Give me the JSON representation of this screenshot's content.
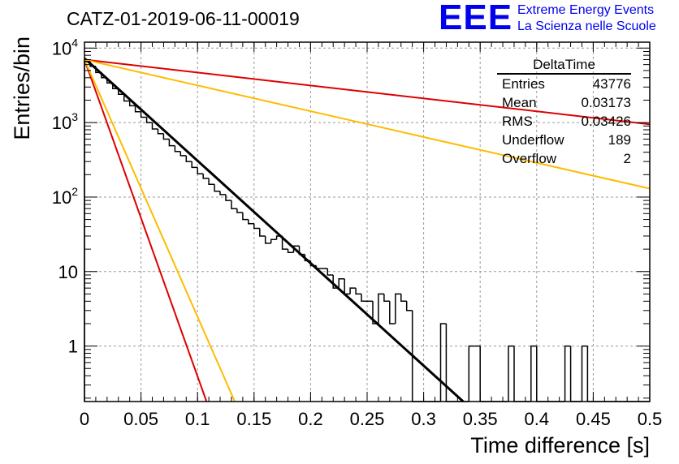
{
  "title": "CATZ-01-2019-06-11-00019",
  "logo": {
    "mark": "EEE",
    "line1": "Extreme Energy Events",
    "line2": "La Scienza nelle Scuole",
    "color": "#0000ee"
  },
  "stats": {
    "title": "DeltaTime",
    "rows": [
      {
        "label": "Entries",
        "value": "43776"
      },
      {
        "label": "Mean",
        "value": "0.03173"
      },
      {
        "label": "RMS",
        "value": "0.03426"
      },
      {
        "label": "Underflow",
        "value": "189"
      },
      {
        "label": "Overflow",
        "value": "2"
      }
    ]
  },
  "chart_data": {
    "type": "histogram",
    "title": "CATZ-01-2019-06-11-00019",
    "xlabel": "Time difference [s]",
    "ylabel": "Entries/bin",
    "xlim": [
      0,
      0.5
    ],
    "ylim": [
      0.18,
      12000
    ],
    "yscale": "log",
    "grid": true,
    "x_ticks": [
      "0",
      "0.05",
      "0.1",
      "0.15",
      "0.2",
      "0.25",
      "0.3",
      "0.35",
      "0.4",
      "0.45",
      "0.5"
    ],
    "x_tick_values": [
      0,
      0.05,
      0.1,
      0.15,
      0.2,
      0.25,
      0.3,
      0.35,
      0.4,
      0.45,
      0.5
    ],
    "y_ticks": [
      {
        "value": 1,
        "base": "1",
        "exp": ""
      },
      {
        "value": 10,
        "base": "10",
        "exp": ""
      },
      {
        "value": 100,
        "base": "10",
        "exp": "2"
      },
      {
        "value": 1000,
        "base": "10",
        "exp": "3"
      },
      {
        "value": 10000,
        "base": "10",
        "exp": "4"
      }
    ],
    "bin_width": 0.005,
    "bin_start": 0,
    "histogram_values": [
      6600,
      5700,
      4700,
      4000,
      3400,
      2850,
      2400,
      1950,
      1680,
      1400,
      1180,
      1000,
      820,
      710,
      600,
      490,
      410,
      360,
      300,
      250,
      205,
      178,
      148,
      120,
      108,
      90,
      70,
      62,
      50,
      44,
      38,
      30,
      24,
      27,
      30,
      20,
      18,
      22,
      17,
      14,
      12,
      11,
      11,
      9,
      6,
      8,
      5,
      6,
      5,
      4,
      4,
      2,
      5,
      4,
      2,
      5,
      4,
      3,
      0,
      0,
      0,
      0,
      0,
      2,
      0,
      0,
      0,
      0,
      1,
      1,
      0,
      0,
      0,
      0,
      0,
      1,
      0,
      0,
      0,
      1,
      0,
      0,
      0,
      0,
      0,
      1,
      0,
      0,
      1,
      0,
      0,
      0,
      0,
      0,
      0,
      0,
      0,
      0,
      0,
      0
    ],
    "histogram_color": "#000000",
    "series": [
      {
        "color": "#000000",
        "x": [
          0,
          0.335
        ],
        "y": [
          7300,
          0.18
        ]
      },
      {
        "color": "#dd0000",
        "x": [
          0,
          0.108
        ],
        "y": [
          7000,
          0.18
        ]
      },
      {
        "color": "#ffbb00",
        "x": [
          0,
          0.133
        ],
        "y": [
          7000,
          0.18
        ]
      },
      {
        "color": "#dd0000",
        "x": [
          0,
          0.5
        ],
        "y": [
          7000,
          950
        ]
      },
      {
        "color": "#ffbb00",
        "x": [
          0,
          0.5
        ],
        "y": [
          7000,
          130
        ]
      }
    ]
  }
}
